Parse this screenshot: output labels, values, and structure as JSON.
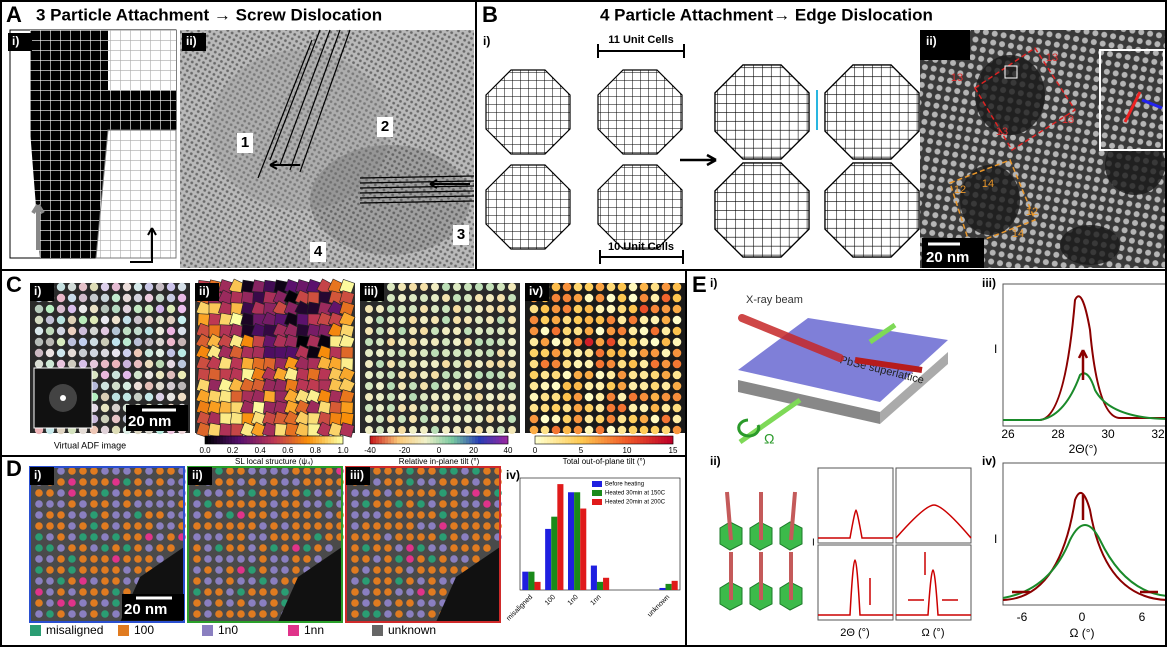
{
  "figure": {
    "A": {
      "letter": "A",
      "title": "3 Particle Attachment → Screw Dislocation",
      "sub": [
        "i)",
        "ii)"
      ],
      "grains": [
        "1",
        "2",
        "3",
        "4"
      ]
    },
    "B": {
      "letter": "B",
      "title": "4 Particle Attachment→ Edge Dislocation",
      "sub": [
        "i)",
        "ii)"
      ],
      "top_label": "11 Unit Cells",
      "bottom_label": "10 Unit Cells",
      "red_labels": [
        "13",
        "13",
        "13",
        "13"
      ],
      "orange_labels": [
        "12",
        "14",
        "12",
        "14"
      ],
      "scale": "20 nm"
    },
    "C": {
      "letter": "C",
      "sub": [
        "i)",
        "ii)",
        "iii)",
        "iv)"
      ],
      "scale": "20 nm",
      "caption": "Virtual ADF image",
      "bars": [
        {
          "ticks": [
            "0.0",
            "0.2",
            "0.4",
            "0.6",
            "0.8",
            "1.0"
          ],
          "label": "SL local structure (ψ₄)"
        },
        {
          "ticks": [
            "-40",
            "-20",
            "0",
            "20",
            "40"
          ],
          "label": "Relative in-plane tilt (°)"
        },
        {
          "ticks": [
            "0",
            "5",
            "10",
            "15"
          ],
          "label": "Total out-of-plane tilt (°)"
        }
      ]
    },
    "D": {
      "letter": "D",
      "sub": [
        "i)",
        "ii)",
        "iii)",
        "iv)"
      ],
      "scale": "20 nm",
      "legend": [
        {
          "name": "misaligned",
          "color": "#2a9d73"
        },
        {
          "name": "100",
          "color": "#e07b20"
        },
        {
          "name": "1n0",
          "color": "#8a7fc0"
        },
        {
          "name": "1nn",
          "color": "#e0338a"
        },
        {
          "name": "unknown",
          "color": "#666666"
        }
      ]
    },
    "E": {
      "letter": "E",
      "sub": [
        "i)",
        "ii)",
        "iii)",
        "iv)"
      ],
      "beam": "X-ray beam",
      "sample": "PbSe superlattice",
      "omega": "Ω",
      "intensity": [
        "I",
        "I",
        "I",
        "I"
      ],
      "small_axes": [
        "2Θ (°)",
        "Ω (°)"
      ],
      "iii_ticks": [
        "26",
        "28",
        "30",
        "32"
      ],
      "iii_axis": "2Θ(°)",
      "iv_ticks": [
        "-6",
        "0",
        "6"
      ],
      "iv_axis": "Ω (°)"
    }
  },
  "chart_data": {
    "type": "bar",
    "categories": [
      "misaligned",
      "100",
      "1n0",
      "1nn",
      null,
      null,
      "unknown"
    ],
    "series": [
      {
        "name": "Before heating",
        "color": "#1f1fe0",
        "values": [
          0.09,
          0.3,
          0.48,
          0.12,
          null,
          null,
          0.01
        ]
      },
      {
        "name": "Heated 30min at 150C",
        "color": "#1a8a1a",
        "values": [
          0.09,
          0.36,
          0.48,
          0.04,
          null,
          null,
          0.03
        ]
      },
      {
        "name": "Heated 20min at 200C",
        "color": "#e01a1a",
        "values": [
          0.04,
          0.52,
          0.4,
          0.06,
          null,
          null,
          0.045
        ]
      }
    ],
    "ylim": [
      0,
      0.55
    ],
    "legend": "upper right"
  }
}
